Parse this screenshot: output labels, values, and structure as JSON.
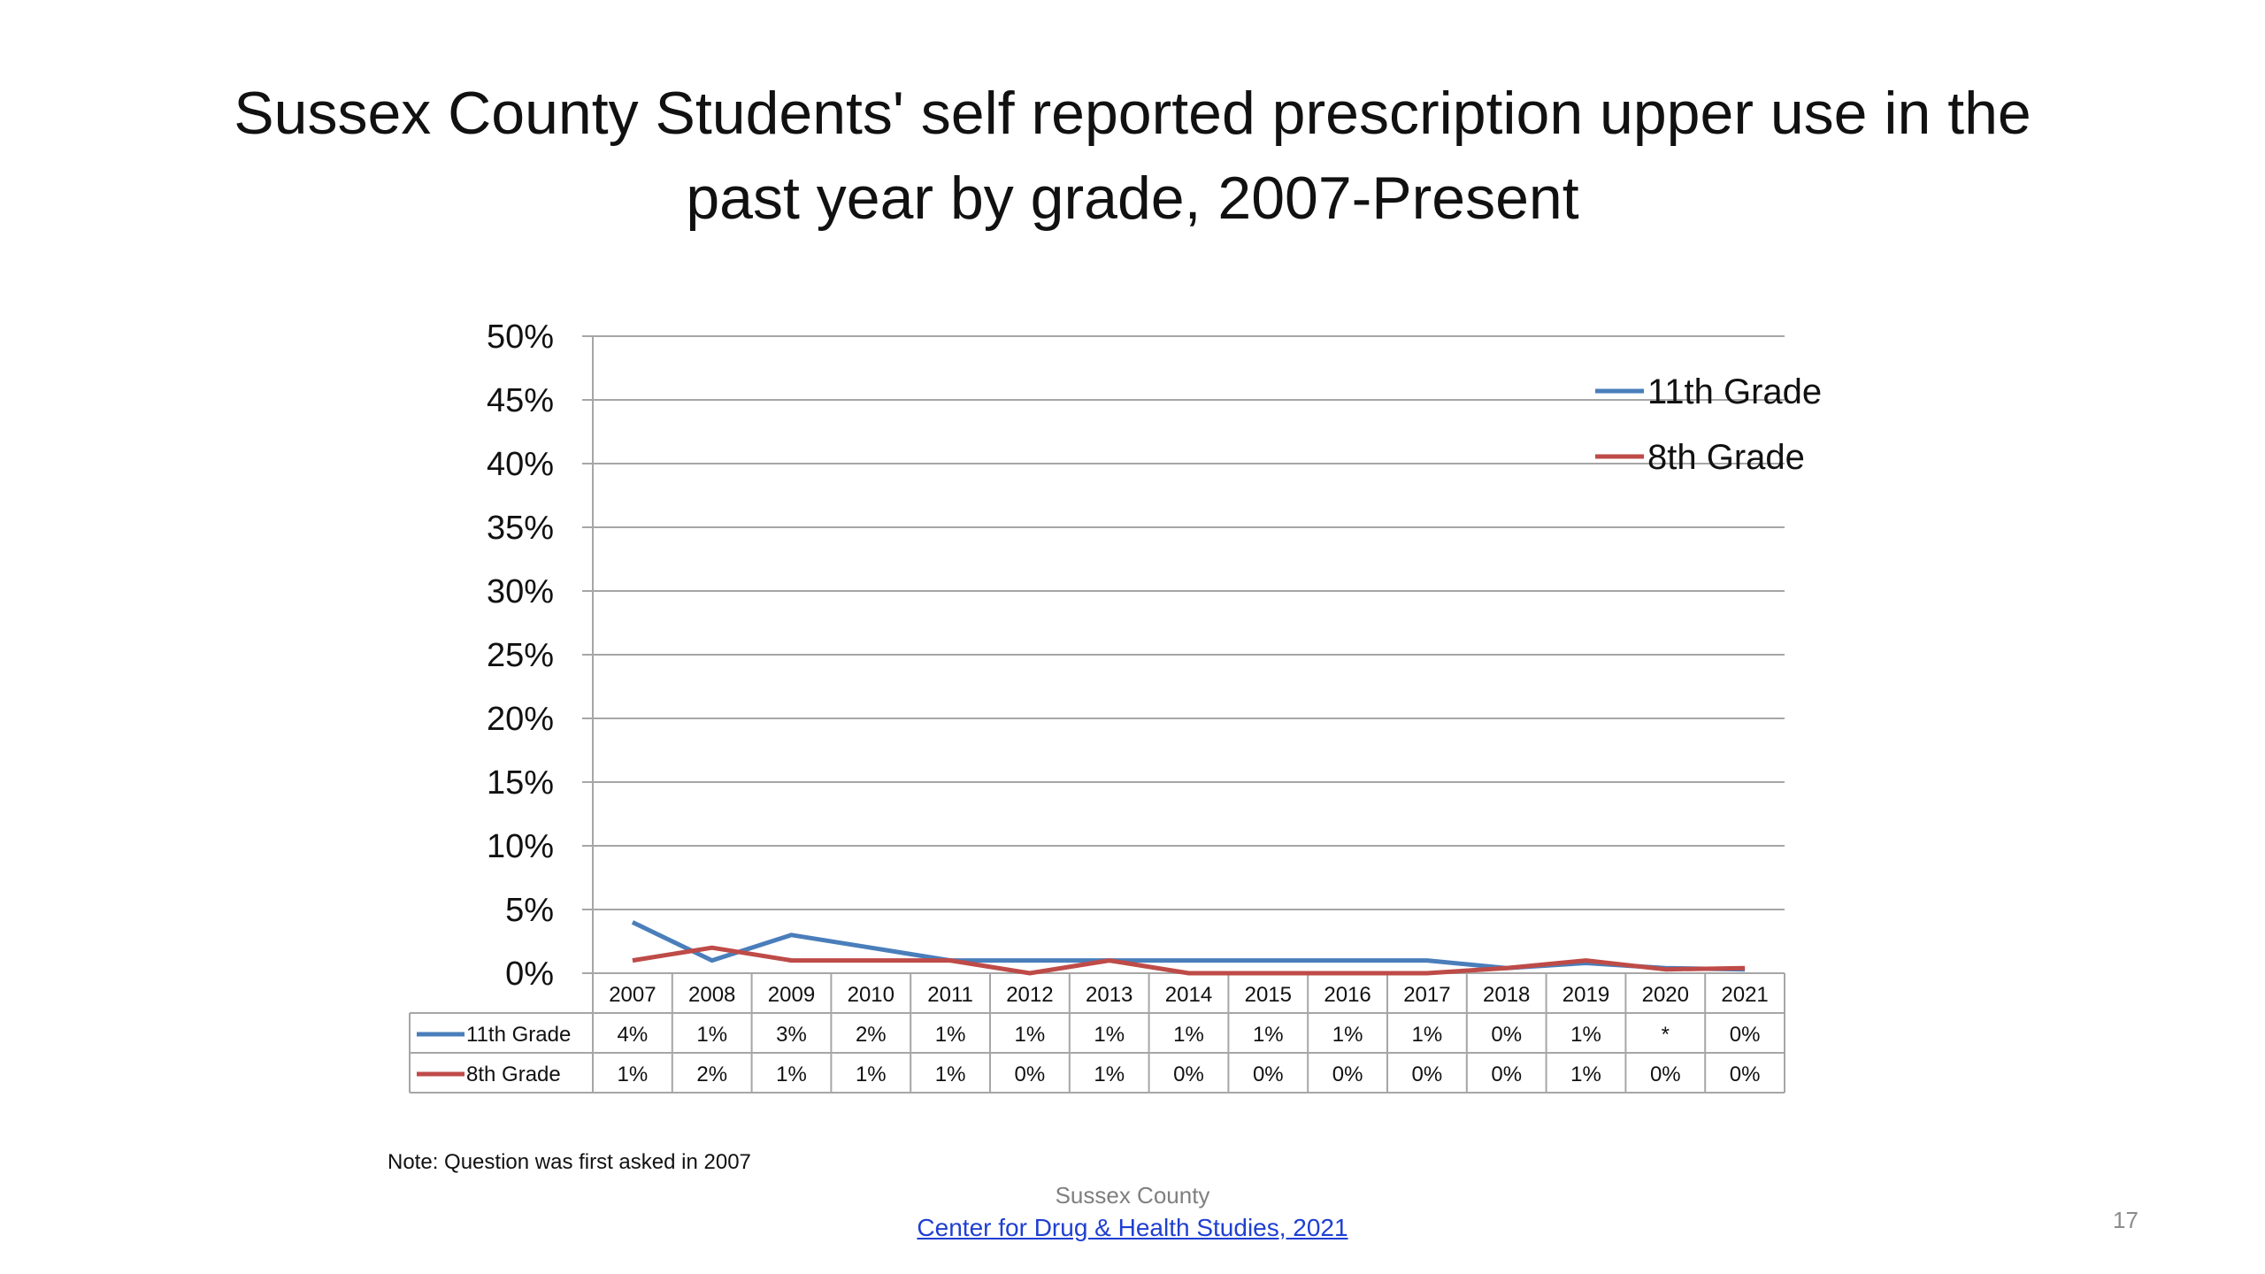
{
  "slide": {
    "title_line1": "Sussex County Students' self reported prescription upper use in the",
    "title_line2": "past year by grade, 2007-Present",
    "note": "Note: Question was first asked in 2007",
    "footer_org": "Sussex County",
    "footer_link": "Center for Drug & Health Studies, 2021",
    "page_number": "17"
  },
  "chart_data": {
    "type": "line",
    "x": [
      "2007",
      "2008",
      "2009",
      "2010",
      "2011",
      "2012",
      "2013",
      "2014",
      "2015",
      "2016",
      "2017",
      "2018",
      "2019",
      "2020",
      "2021"
    ],
    "ylim": [
      0,
      50
    ],
    "yticks": [
      "0%",
      "5%",
      "10%",
      "15%",
      "20%",
      "25%",
      "30%",
      "35%",
      "40%",
      "45%",
      "50%"
    ],
    "grid": true,
    "legend_position": "top-right",
    "series": [
      {
        "name": "11th Grade",
        "color": "#4a7ebb",
        "values": [
          4,
          1,
          3,
          2,
          1,
          1,
          1,
          1,
          1,
          1,
          1,
          0.4,
          0.8,
          0.4,
          0.3
        ],
        "table_labels": [
          "4%",
          "1%",
          "3%",
          "2%",
          "1%",
          "1%",
          "1%",
          "1%",
          "1%",
          "1%",
          "1%",
          "0%",
          "1%",
          "*",
          "0%"
        ]
      },
      {
        "name": "8th Grade",
        "color": "#be4b48",
        "values": [
          1,
          2,
          1,
          1,
          1,
          0,
          1,
          0,
          0,
          0,
          0,
          0.4,
          1,
          0.3,
          0.4
        ],
        "table_labels": [
          "1%",
          "2%",
          "1%",
          "1%",
          "1%",
          "0%",
          "1%",
          "0%",
          "0%",
          "0%",
          "0%",
          "0%",
          "1%",
          "0%",
          "0%"
        ]
      }
    ]
  }
}
